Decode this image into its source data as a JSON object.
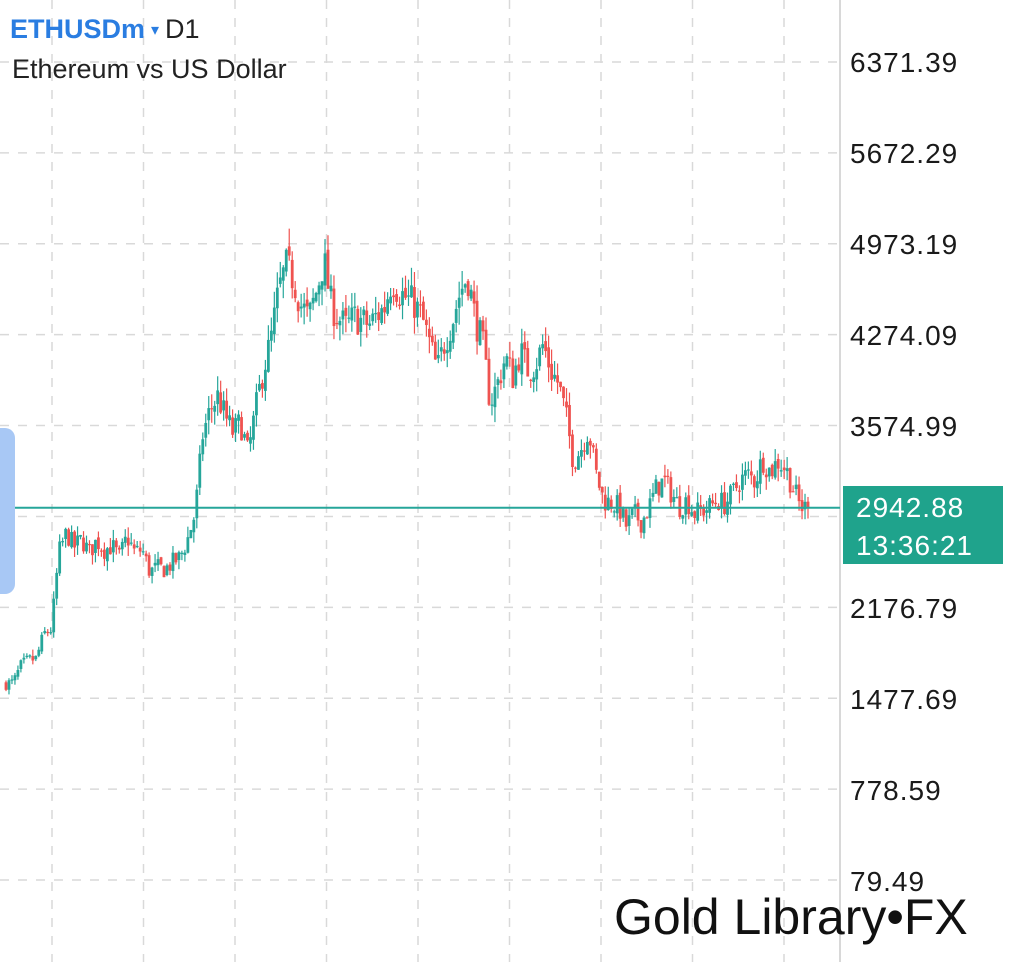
{
  "header": {
    "symbol": "ETHUSDm",
    "caret": "▾",
    "timeframe": "D1",
    "description": "Ethereum vs US Dollar"
  },
  "colors": {
    "bull": "#26a69a",
    "bear": "#ef5350",
    "current_line": "#26a69a",
    "grid": "#d9d9d9",
    "axis": "#cccccc",
    "label_box": "#1fa38c",
    "symbol": "#2a7de1",
    "side_tab": "#a8c8f5"
  },
  "watermark": "Gold Library•FX",
  "chart_data": {
    "type": "candlestick",
    "title": "ETHUSDm",
    "subtitle": "Ethereum vs US Dollar",
    "timeframe": "D1",
    "y_axis": {
      "labels": [
        "6371.39",
        "5672.29",
        "4973.19",
        "4274.09",
        "3574.99",
        "2176.79",
        "1477.69",
        "778.59",
        "79.49"
      ],
      "range": [
        79.49,
        6371.39
      ],
      "position": "right"
    },
    "grid": true,
    "current_price": {
      "price": "2942.88",
      "countdown": "13:36:21"
    },
    "close_path": [
      1590,
      1600,
      1730,
      1770,
      1780,
      1970,
      2010,
      2600,
      2750,
      2640,
      2700,
      2600,
      2690,
      2620,
      2650,
      2560,
      2720,
      2600,
      2620,
      2450,
      2480,
      2470,
      2520,
      2560,
      2700,
      2900,
      3500,
      3700,
      3800,
      3640,
      3520,
      3600,
      3350,
      3700,
      4000,
      4230,
      4600,
      4800,
      4700,
      4500,
      4400,
      4600,
      4850,
      4500,
      4400,
      4330,
      4410,
      4380,
      4350,
      4420,
      4480,
      4700,
      4600,
      4550,
      4510,
      4400,
      4200,
      4000,
      4220,
      4380,
      4600,
      4730,
      4400,
      4200,
      3750,
      3900,
      4100,
      3950,
      4150,
      4000,
      4050,
      4200,
      4000,
      3900,
      3650,
      3300,
      3400,
      3550,
      3200,
      3000,
      2980,
      2950,
      2800,
      2900,
      2830,
      2950,
      3100,
      3150,
      3050,
      2950,
      3000,
      2900,
      2920,
      2950,
      3000,
      2970,
      3050,
      3150,
      3200,
      3150,
      3320,
      3220,
      3300,
      3250,
      3100,
      2950,
      2942.88
    ]
  }
}
